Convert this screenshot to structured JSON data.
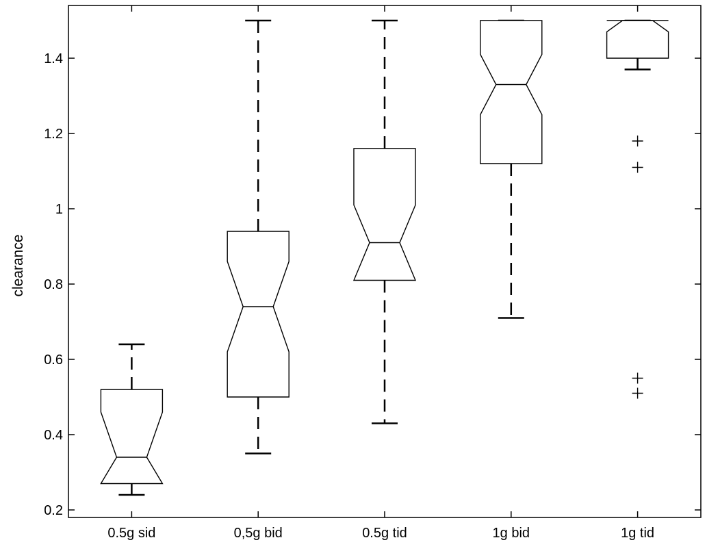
{
  "chart_data": {
    "type": "box",
    "ylabel": "clearance",
    "ylim": [
      0.18,
      1.54
    ],
    "yticks": [
      0.2,
      0.4,
      0.6,
      0.8,
      1,
      1.2,
      1.4
    ],
    "ytick_labels": [
      "0.2",
      "0.4",
      "0.6",
      "0.8",
      "1",
      "1.2",
      "1.4"
    ],
    "notched": true,
    "categories": [
      "0.5g sid",
      "0,5g bid",
      "0.5g tid",
      "1g bid",
      "1g tid"
    ],
    "boxes": [
      {
        "whisker_low": 0.24,
        "q1": 0.27,
        "median": 0.34,
        "q3": 0.52,
        "whisker_high": 0.64,
        "notch_low": 0.27,
        "notch_high": 0.46,
        "outliers": []
      },
      {
        "whisker_low": 0.35,
        "q1": 0.5,
        "median": 0.74,
        "q3": 0.94,
        "whisker_high": 1.5,
        "notch_low": 0.62,
        "notch_high": 0.86,
        "outliers": []
      },
      {
        "whisker_low": 0.43,
        "q1": 0.81,
        "median": 0.91,
        "q3": 1.16,
        "whisker_high": 1.5,
        "notch_low": 0.81,
        "notch_high": 1.01,
        "outliers": []
      },
      {
        "whisker_low": 0.71,
        "q1": 1.12,
        "median": 1.33,
        "q3": 1.5,
        "whisker_high": 1.5,
        "notch_low": 1.25,
        "notch_high": 1.41,
        "outliers": []
      },
      {
        "whisker_low": 1.37,
        "q1": 1.4,
        "median": 1.5,
        "q3": 1.5,
        "whisker_high": 1.5,
        "notch_low": 1.47,
        "notch_high": 1.5,
        "outliers": [
          1.18,
          1.11,
          0.55,
          0.51
        ]
      }
    ]
  }
}
